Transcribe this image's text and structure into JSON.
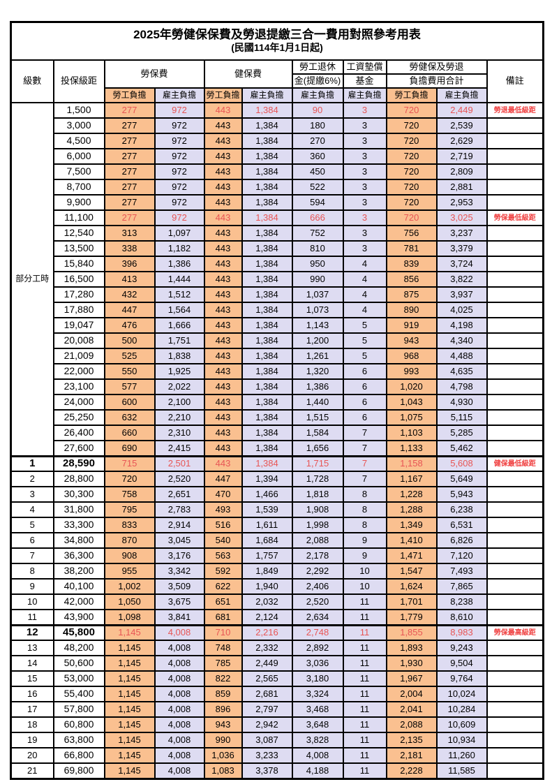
{
  "title": "2025年勞健保保費及勞退提繳三合一費用對照參考用表",
  "subtitle": "(民國114年1月1日起)",
  "part_time_label": "部分工時",
  "header": {
    "level": "級數",
    "bracket": "投保級距",
    "labor_insurance": "勞保費",
    "health_insurance": "健保費",
    "pension_line1": "勞工退休",
    "pension_line2": "金(提繳6%)",
    "wage_fund_line1": "工資墊償",
    "wage_fund_line2": "基金",
    "total_line1": "勞健保及勞退",
    "total_line2": "負擔費用合計",
    "employee": "勞工負擔",
    "employer": "雇主負擔",
    "remark": "備註"
  },
  "colors": {
    "employee_bg": "#fac090",
    "employer_bg": "#dedcf2",
    "red_text": "#e85555",
    "remark_red": "#f04141",
    "border": "#000000"
  },
  "rows": [
    {
      "level": "",
      "bracket": "1,500",
      "values": [
        "277",
        "972",
        "443",
        "1,384",
        "90",
        "3",
        "720",
        "2,449"
      ],
      "remark": "勞退最低級距",
      "red": true,
      "emphasis": false
    },
    {
      "level": "",
      "bracket": "3,000",
      "values": [
        "277",
        "972",
        "443",
        "1,384",
        "180",
        "3",
        "720",
        "2,539"
      ],
      "remark": "",
      "red": false,
      "emphasis": false
    },
    {
      "level": "",
      "bracket": "4,500",
      "values": [
        "277",
        "972",
        "443",
        "1,384",
        "270",
        "3",
        "720",
        "2,629"
      ],
      "remark": "",
      "red": false,
      "emphasis": false
    },
    {
      "level": "",
      "bracket": "6,000",
      "values": [
        "277",
        "972",
        "443",
        "1,384",
        "360",
        "3",
        "720",
        "2,719"
      ],
      "remark": "",
      "red": false,
      "emphasis": false
    },
    {
      "level": "",
      "bracket": "7,500",
      "values": [
        "277",
        "972",
        "443",
        "1,384",
        "450",
        "3",
        "720",
        "2,809"
      ],
      "remark": "",
      "red": false,
      "emphasis": false
    },
    {
      "level": "",
      "bracket": "8,700",
      "values": [
        "277",
        "972",
        "443",
        "1,384",
        "522",
        "3",
        "720",
        "2,881"
      ],
      "remark": "",
      "red": false,
      "emphasis": false
    },
    {
      "level": "",
      "bracket": "9,900",
      "values": [
        "277",
        "972",
        "443",
        "1,384",
        "594",
        "3",
        "720",
        "2,953"
      ],
      "remark": "",
      "red": false,
      "emphasis": false
    },
    {
      "level": "",
      "bracket": "11,100",
      "values": [
        "277",
        "972",
        "443",
        "1,384",
        "666",
        "3",
        "720",
        "3,025"
      ],
      "remark": "勞保最低級距",
      "red": true,
      "emphasis": false
    },
    {
      "level": "",
      "bracket": "12,540",
      "values": [
        "313",
        "1,097",
        "443",
        "1,384",
        "752",
        "3",
        "756",
        "3,237"
      ],
      "remark": "",
      "red": false,
      "emphasis": false
    },
    {
      "level": "",
      "bracket": "13,500",
      "values": [
        "338",
        "1,182",
        "443",
        "1,384",
        "810",
        "3",
        "781",
        "3,379"
      ],
      "remark": "",
      "red": false,
      "emphasis": false
    },
    {
      "level": "",
      "bracket": "15,840",
      "values": [
        "396",
        "1,386",
        "443",
        "1,384",
        "950",
        "4",
        "839",
        "3,724"
      ],
      "remark": "",
      "red": false,
      "emphasis": false
    },
    {
      "level": "",
      "bracket": "16,500",
      "values": [
        "413",
        "1,444",
        "443",
        "1,384",
        "990",
        "4",
        "856",
        "3,822"
      ],
      "remark": "",
      "red": false,
      "emphasis": false
    },
    {
      "level": "",
      "bracket": "17,280",
      "values": [
        "432",
        "1,512",
        "443",
        "1,384",
        "1,037",
        "4",
        "875",
        "3,937"
      ],
      "remark": "",
      "red": false,
      "emphasis": false
    },
    {
      "level": "",
      "bracket": "17,880",
      "values": [
        "447",
        "1,564",
        "443",
        "1,384",
        "1,073",
        "4",
        "890",
        "4,025"
      ],
      "remark": "",
      "red": false,
      "emphasis": false
    },
    {
      "level": "",
      "bracket": "19,047",
      "values": [
        "476",
        "1,666",
        "443",
        "1,384",
        "1,143",
        "5",
        "919",
        "4,198"
      ],
      "remark": "",
      "red": false,
      "emphasis": false
    },
    {
      "level": "",
      "bracket": "20,008",
      "values": [
        "500",
        "1,751",
        "443",
        "1,384",
        "1,200",
        "5",
        "943",
        "4,340"
      ],
      "remark": "",
      "red": false,
      "emphasis": false
    },
    {
      "level": "",
      "bracket": "21,009",
      "values": [
        "525",
        "1,838",
        "443",
        "1,384",
        "1,261",
        "5",
        "968",
        "4,488"
      ],
      "remark": "",
      "red": false,
      "emphasis": false
    },
    {
      "level": "",
      "bracket": "22,000",
      "values": [
        "550",
        "1,925",
        "443",
        "1,384",
        "1,320",
        "6",
        "993",
        "4,635"
      ],
      "remark": "",
      "red": false,
      "emphasis": false
    },
    {
      "level": "",
      "bracket": "23,100",
      "values": [
        "577",
        "2,022",
        "443",
        "1,384",
        "1,386",
        "6",
        "1,020",
        "4,798"
      ],
      "remark": "",
      "red": false,
      "emphasis": false
    },
    {
      "level": "",
      "bracket": "24,000",
      "values": [
        "600",
        "2,100",
        "443",
        "1,384",
        "1,440",
        "6",
        "1,043",
        "4,930"
      ],
      "remark": "",
      "red": false,
      "emphasis": false
    },
    {
      "level": "",
      "bracket": "25,250",
      "values": [
        "632",
        "2,210",
        "443",
        "1,384",
        "1,515",
        "6",
        "1,075",
        "5,115"
      ],
      "remark": "",
      "red": false,
      "emphasis": false
    },
    {
      "level": "",
      "bracket": "26,400",
      "values": [
        "660",
        "2,310",
        "443",
        "1,384",
        "1,584",
        "7",
        "1,103",
        "5,285"
      ],
      "remark": "",
      "red": false,
      "emphasis": false
    },
    {
      "level": "",
      "bracket": "27,600",
      "values": [
        "690",
        "2,415",
        "443",
        "1,384",
        "1,656",
        "7",
        "1,133",
        "5,462"
      ],
      "remark": "",
      "red": false,
      "emphasis": false
    },
    {
      "level": "1",
      "bracket": "28,590",
      "values": [
        "715",
        "2,501",
        "443",
        "1,384",
        "1,715",
        "7",
        "1,158",
        "5,608"
      ],
      "remark": "健保最低級距",
      "red": true,
      "emphasis": true
    },
    {
      "level": "2",
      "bracket": "28,800",
      "values": [
        "720",
        "2,520",
        "447",
        "1,394",
        "1,728",
        "7",
        "1,167",
        "5,649"
      ],
      "remark": "",
      "red": false,
      "emphasis": false
    },
    {
      "level": "3",
      "bracket": "30,300",
      "values": [
        "758",
        "2,651",
        "470",
        "1,466",
        "1,818",
        "8",
        "1,228",
        "5,943"
      ],
      "remark": "",
      "red": false,
      "emphasis": false
    },
    {
      "level": "4",
      "bracket": "31,800",
      "values": [
        "795",
        "2,783",
        "493",
        "1,539",
        "1,908",
        "8",
        "1,288",
        "6,238"
      ],
      "remark": "",
      "red": false,
      "emphasis": false
    },
    {
      "level": "5",
      "bracket": "33,300",
      "values": [
        "833",
        "2,914",
        "516",
        "1,611",
        "1,998",
        "8",
        "1,349",
        "6,531"
      ],
      "remark": "",
      "red": false,
      "emphasis": false
    },
    {
      "level": "6",
      "bracket": "34,800",
      "values": [
        "870",
        "3,045",
        "540",
        "1,684",
        "2,088",
        "9",
        "1,410",
        "6,826"
      ],
      "remark": "",
      "red": false,
      "emphasis": false
    },
    {
      "level": "7",
      "bracket": "36,300",
      "values": [
        "908",
        "3,176",
        "563",
        "1,757",
        "2,178",
        "9",
        "1,471",
        "7,120"
      ],
      "remark": "",
      "red": false,
      "emphasis": false
    },
    {
      "level": "8",
      "bracket": "38,200",
      "values": [
        "955",
        "3,342",
        "592",
        "1,849",
        "2,292",
        "10",
        "1,547",
        "7,493"
      ],
      "remark": "",
      "red": false,
      "emphasis": false
    },
    {
      "level": "9",
      "bracket": "40,100",
      "values": [
        "1,002",
        "3,509",
        "622",
        "1,940",
        "2,406",
        "10",
        "1,624",
        "7,865"
      ],
      "remark": "",
      "red": false,
      "emphasis": false
    },
    {
      "level": "10",
      "bracket": "42,000",
      "values": [
        "1,050",
        "3,675",
        "651",
        "2,032",
        "2,520",
        "11",
        "1,701",
        "8,238"
      ],
      "remark": "",
      "red": false,
      "emphasis": false
    },
    {
      "level": "11",
      "bracket": "43,900",
      "values": [
        "1,098",
        "3,841",
        "681",
        "2,124",
        "2,634",
        "11",
        "1,779",
        "8,610"
      ],
      "remark": "",
      "red": false,
      "emphasis": false
    },
    {
      "level": "12",
      "bracket": "45,800",
      "values": [
        "1,145",
        "4,008",
        "710",
        "2,216",
        "2,748",
        "11",
        "1,855",
        "8,983"
      ],
      "remark": "勞保最高級距",
      "red": true,
      "emphasis": true
    },
    {
      "level": "13",
      "bracket": "48,200",
      "values": [
        "1,145",
        "4,008",
        "748",
        "2,332",
        "2,892",
        "11",
        "1,893",
        "9,243"
      ],
      "remark": "",
      "red": false,
      "emphasis": false
    },
    {
      "level": "14",
      "bracket": "50,600",
      "values": [
        "1,145",
        "4,008",
        "785",
        "2,449",
        "3,036",
        "11",
        "1,930",
        "9,504"
      ],
      "remark": "",
      "red": false,
      "emphasis": false
    },
    {
      "level": "15",
      "bracket": "53,000",
      "values": [
        "1,145",
        "4,008",
        "822",
        "2,565",
        "3,180",
        "11",
        "1,967",
        "9,764"
      ],
      "remark": "",
      "red": false,
      "emphasis": false
    },
    {
      "level": "16",
      "bracket": "55,400",
      "values": [
        "1,145",
        "4,008",
        "859",
        "2,681",
        "3,324",
        "11",
        "2,004",
        "10,024"
      ],
      "remark": "",
      "red": false,
      "emphasis": false
    },
    {
      "level": "17",
      "bracket": "57,800",
      "values": [
        "1,145",
        "4,008",
        "896",
        "2,797",
        "3,468",
        "11",
        "2,041",
        "10,284"
      ],
      "remark": "",
      "red": false,
      "emphasis": false
    },
    {
      "level": "18",
      "bracket": "60,800",
      "values": [
        "1,145",
        "4,008",
        "943",
        "2,942",
        "3,648",
        "11",
        "2,088",
        "10,609"
      ],
      "remark": "",
      "red": false,
      "emphasis": false
    },
    {
      "level": "19",
      "bracket": "63,800",
      "values": [
        "1,145",
        "4,008",
        "990",
        "3,087",
        "3,828",
        "11",
        "2,135",
        "10,934"
      ],
      "remark": "",
      "red": false,
      "emphasis": false
    },
    {
      "level": "20",
      "bracket": "66,800",
      "values": [
        "1,145",
        "4,008",
        "1,036",
        "3,233",
        "4,008",
        "11",
        "2,181",
        "11,260"
      ],
      "remark": "",
      "red": false,
      "emphasis": false
    },
    {
      "level": "21",
      "bracket": "69,800",
      "values": [
        "1,145",
        "4,008",
        "1,083",
        "3,378",
        "4,188",
        "11",
        "2,228",
        "11,585"
      ],
      "remark": "",
      "red": false,
      "emphasis": false
    }
  ]
}
